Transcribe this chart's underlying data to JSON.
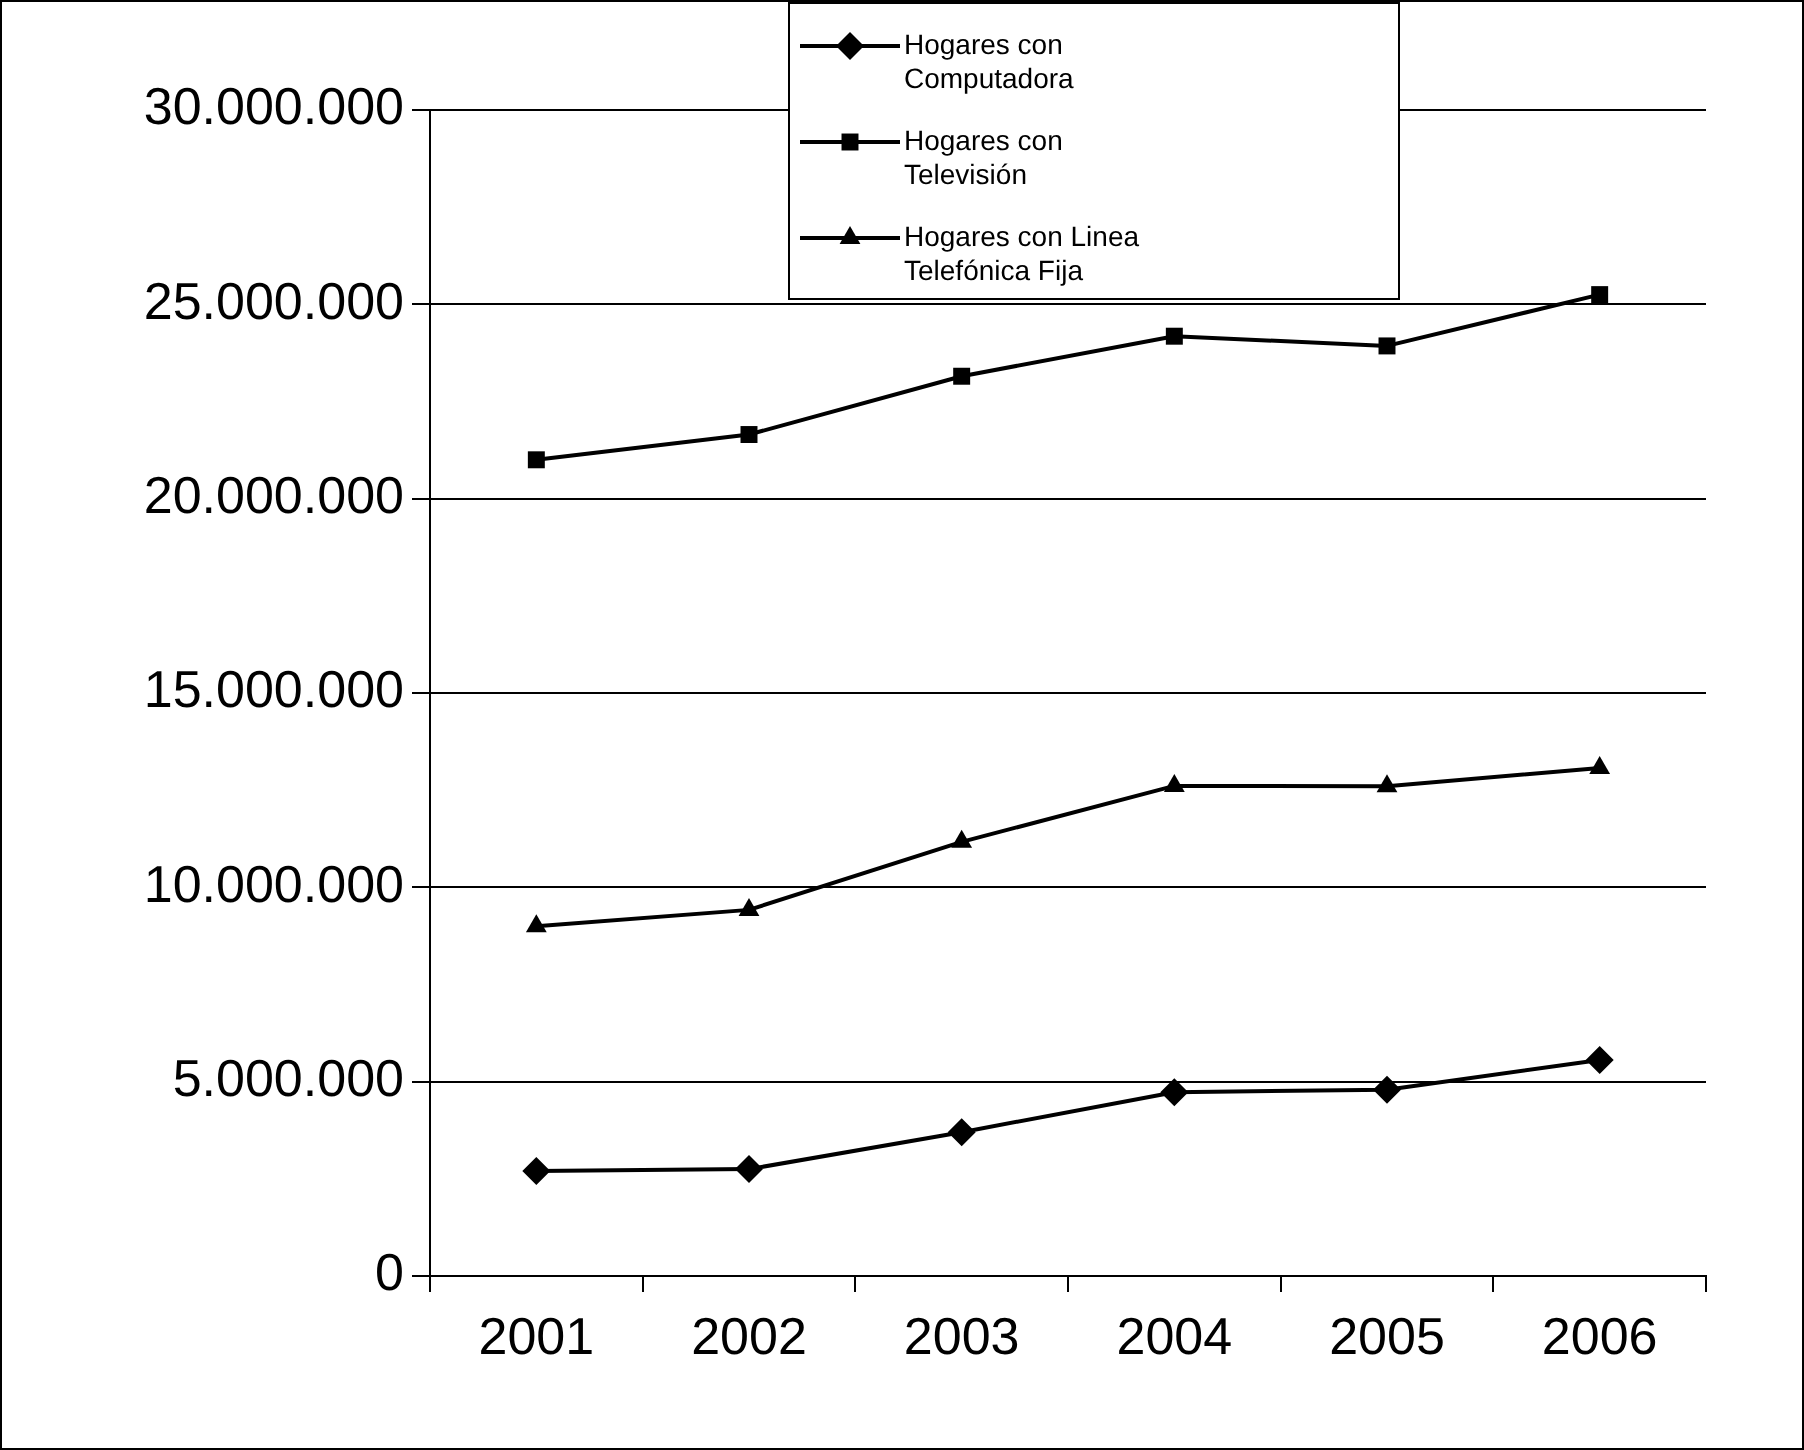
{
  "chart_data": {
    "type": "line",
    "categories": [
      "2001",
      "2002",
      "2003",
      "2004",
      "2005",
      "2006"
    ],
    "series": [
      {
        "name": "Hogares con Computadora",
        "color": "#000000",
        "marker": "diamond",
        "values": [
          2700000,
          2750000,
          3700000,
          4730000,
          4790000,
          5560000
        ]
      },
      {
        "name": "Hogares con Televisión",
        "color": "#000000",
        "marker": "square",
        "values": [
          21000000,
          21650000,
          23150000,
          24180000,
          23930000,
          25250000
        ]
      },
      {
        "name": "Hogares con Linea Telefónica Fija",
        "color": "#000000",
        "marker": "triangle",
        "values": [
          9000000,
          9420000,
          11170000,
          12610000,
          12600000,
          13070000
        ]
      }
    ],
    "ylim": [
      0,
      30000000
    ],
    "yticks": [
      {
        "value": 0,
        "label": "0"
      },
      {
        "value": 5000000,
        "label": "5.000.000"
      },
      {
        "value": 10000000,
        "label": "10.000.000"
      },
      {
        "value": 15000000,
        "label": "15.000.000"
      },
      {
        "value": 20000000,
        "label": "20.000.000"
      },
      {
        "value": 25000000,
        "label": "25.000.000"
      },
      {
        "value": 30000000,
        "label": "30.000.000"
      }
    ],
    "grid": "y",
    "legend": "top",
    "line_style": "solid"
  }
}
